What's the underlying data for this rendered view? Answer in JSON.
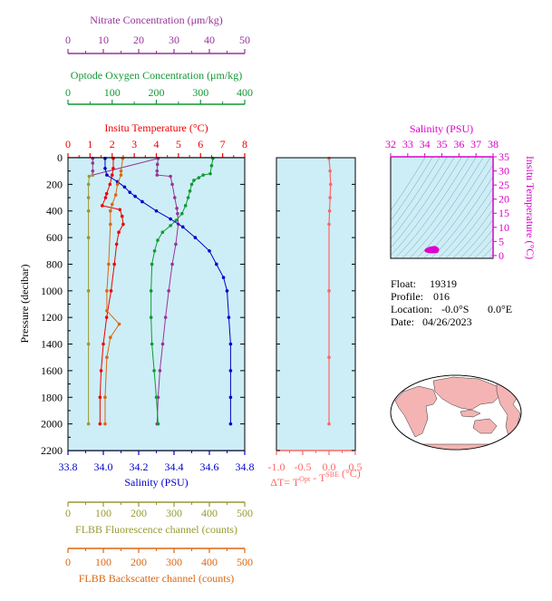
{
  "colors": {
    "panel_bg": "#cdeef6",
    "nitrate": "#993399",
    "oxygen": "#119933",
    "temperature": "#ee0000",
    "salinity": "#0000cc",
    "fluorescence": "#999933",
    "backscatter": "#dd6611",
    "delta_t": "#ff6666",
    "ts": "#dd00cc"
  },
  "info": {
    "float_label": "Float:",
    "float_value": "19319",
    "profile_label": "Profile:",
    "profile_value": "016",
    "location_label": "Location:",
    "location_lat": "-0.0°S",
    "location_lon": "0.0°E",
    "date_label": "Date:",
    "date_value": "04/26/2023"
  },
  "chart_data": [
    {
      "type": "line",
      "name": "profile-panel",
      "ylabel": "Pressure (decibar)",
      "ylim": [
        2200,
        0
      ],
      "yticks": [
        0,
        200,
        400,
        600,
        800,
        1000,
        1200,
        1400,
        1600,
        1800,
        2000,
        2200
      ],
      "axes": {
        "nitrate": {
          "label": "Nitrate Concentration (μm/kg)",
          "range": [
            0,
            50
          ],
          "ticks": [
            0,
            10,
            20,
            30,
            40,
            50
          ]
        },
        "oxygen": {
          "label": "Optode Oxygen Concentration (μm/kg)",
          "range": [
            0,
            400
          ],
          "ticks": [
            0,
            100,
            200,
            300,
            400
          ]
        },
        "temperature": {
          "label": "Insitu Temperature (°C)",
          "range": [
            0,
            8
          ],
          "ticks": [
            0,
            1,
            2,
            3,
            4,
            5,
            6,
            7,
            8
          ]
        },
        "salinity": {
          "label": "Salinity (PSU)",
          "range": [
            33.8,
            34.8
          ],
          "ticks": [
            "33.8",
            "34.0",
            "34.2",
            "34.4",
            "34.6",
            "34.8"
          ]
        },
        "fluorescence": {
          "label": "FLBB Fluorescence channel (counts)",
          "range": [
            0,
            500
          ],
          "ticks": [
            0,
            100,
            200,
            300,
            400,
            500
          ]
        },
        "backscatter": {
          "label": "FLBB Backscatter channel (counts)",
          "range": [
            0,
            500
          ],
          "ticks": [
            0,
            100,
            200,
            300,
            400,
            500
          ]
        }
      },
      "series": [
        {
          "key": "nitrate",
          "axis": "nitrate",
          "points": [
            [
              7,
              5
            ],
            [
              7,
              40
            ],
            [
              7,
              100
            ],
            [
              7,
              130
            ],
            [
              25.5,
              5
            ],
            [
              25.3,
              50
            ],
            [
              25.2,
              100
            ],
            [
              25.2,
              130
            ],
            [
              29,
              140
            ],
            [
              29.5,
              200
            ],
            [
              30.2,
              300
            ],
            [
              30.8,
              380
            ],
            [
              31,
              420
            ],
            [
              31.2,
              500
            ],
            [
              30.5,
              650
            ],
            [
              29.5,
              800
            ],
            [
              28.5,
              1000
            ],
            [
              27.6,
              1200
            ],
            [
              26.8,
              1400
            ],
            [
              26,
              1600
            ],
            [
              25.5,
              1800
            ],
            [
              25.2,
              2000
            ]
          ]
        },
        {
          "key": "oxygen",
          "axis": "oxygen",
          "points": [
            [
              328,
              5
            ],
            [
              325,
              60
            ],
            [
              322,
              120
            ],
            [
              306,
              130
            ],
            [
              296,
              150
            ],
            [
              285,
              170
            ],
            [
              280,
              200
            ],
            [
              276,
              250
            ],
            [
              272,
              300
            ],
            [
              266,
              360
            ],
            [
              258,
              420
            ],
            [
              245,
              470
            ],
            [
              232,
              510
            ],
            [
              214,
              560
            ],
            [
              203,
              620
            ],
            [
              196,
              700
            ],
            [
              190,
              800
            ],
            [
              188,
              1000
            ],
            [
              188,
              1200
            ],
            [
              190,
              1400
            ],
            [
              195,
              1600
            ],
            [
              200,
              1800
            ],
            [
              204,
              2000
            ]
          ]
        },
        {
          "key": "temperature",
          "axis": "temperature",
          "points": [
            [
              2.05,
              5
            ],
            [
              2.05,
              80
            ],
            [
              2.0,
              130
            ],
            [
              1.9,
              200
            ],
            [
              1.75,
              270
            ],
            [
              1.7,
              300
            ],
            [
              1.55,
              360
            ],
            [
              2.35,
              390
            ],
            [
              2.45,
              440
            ],
            [
              2.5,
              500
            ],
            [
              2.3,
              560
            ],
            [
              2.2,
              650
            ],
            [
              2.1,
              800
            ],
            [
              1.95,
              1000
            ],
            [
              1.75,
              1200
            ],
            [
              1.6,
              1400
            ],
            [
              1.5,
              1600
            ],
            [
              1.45,
              1800
            ],
            [
              1.45,
              2000
            ]
          ]
        },
        {
          "key": "salinity",
          "axis": "salinity",
          "points": [
            [
              34.01,
              5
            ],
            [
              34.01,
              80
            ],
            [
              34.02,
              130
            ],
            [
              34.08,
              180
            ],
            [
              34.12,
              220
            ],
            [
              34.15,
              260
            ],
            [
              34.18,
              290
            ],
            [
              34.22,
              330
            ],
            [
              34.3,
              400
            ],
            [
              34.38,
              460
            ],
            [
              34.45,
              520
            ],
            [
              34.52,
              600
            ],
            [
              34.6,
              700
            ],
            [
              34.64,
              800
            ],
            [
              34.68,
              900
            ],
            [
              34.7,
              1000
            ],
            [
              34.71,
              1200
            ],
            [
              34.72,
              1400
            ],
            [
              34.72,
              1600
            ],
            [
              34.72,
              1800
            ],
            [
              34.72,
              2000
            ]
          ]
        },
        {
          "key": "fluorescence",
          "axis": "fluorescence",
          "points": [
            [
              70,
              130
            ],
            [
              60,
              140
            ],
            [
              58,
              200
            ],
            [
              58,
              300
            ],
            [
              58,
              400
            ],
            [
              58,
              600
            ],
            [
              58,
              1000
            ],
            [
              58,
              1400
            ],
            [
              58,
              2000
            ]
          ]
        },
        {
          "key": "backscatter",
          "axis": "backscatter",
          "points": [
            [
              155,
              5
            ],
            [
              150,
              100
            ],
            [
              150,
              130
            ],
            [
              140,
              200
            ],
            [
              135,
              280
            ],
            [
              125,
              350
            ],
            [
              120,
              400
            ],
            [
              120,
              500
            ],
            [
              115,
              800
            ],
            [
              110,
              1000
            ],
            [
              110,
              1150
            ],
            [
              145,
              1250
            ],
            [
              120,
              1350
            ],
            [
              110,
              1500
            ],
            [
              105,
              1800
            ],
            [
              105,
              2000
            ]
          ]
        }
      ]
    },
    {
      "type": "line",
      "name": "delta-t-panel",
      "xlabel": "ΔT= T^Opt - T^SBE (°C)",
      "xlim": [
        -1.0,
        0.5
      ],
      "xticks": [
        "-1.0",
        "-0.5",
        "0.0",
        "0.5"
      ],
      "ylim": [
        2200,
        0
      ],
      "series": [
        {
          "key": "delta_t",
          "points": [
            [
              0.0,
              5
            ],
            [
              0.02,
              100
            ],
            [
              0.03,
              200
            ],
            [
              0.02,
              300
            ],
            [
              0.01,
              400
            ],
            [
              0.0,
              500
            ],
            [
              0.0,
              1000
            ],
            [
              0.0,
              1500
            ],
            [
              0.0,
              2000
            ]
          ]
        }
      ]
    },
    {
      "type": "scatter",
      "name": "ts-panel",
      "xlabel": "Salinity (PSU)",
      "ylabel": "Insitu Temperature (°C)",
      "xlim": [
        32,
        38
      ],
      "ylim": [
        -1,
        35
      ],
      "xticks": [
        32,
        33,
        34,
        35,
        36,
        37,
        38
      ],
      "yticks": [
        0,
        5,
        10,
        15,
        20,
        25,
        30,
        35
      ],
      "points": [
        [
          34.15,
          2.0
        ],
        [
          34.25,
          2.3
        ],
        [
          34.35,
          2.5
        ],
        [
          34.45,
          2.6
        ],
        [
          34.55,
          2.7
        ],
        [
          34.62,
          2.6
        ],
        [
          34.68,
          2.4
        ],
        [
          34.72,
          2.2
        ],
        [
          34.72,
          1.9
        ],
        [
          34.7,
          1.6
        ],
        [
          34.6,
          1.5
        ],
        [
          34.5,
          1.45
        ],
        [
          34.4,
          1.45
        ],
        [
          34.3,
          1.5
        ],
        [
          34.2,
          1.6
        ],
        [
          34.1,
          1.8
        ]
      ]
    }
  ]
}
